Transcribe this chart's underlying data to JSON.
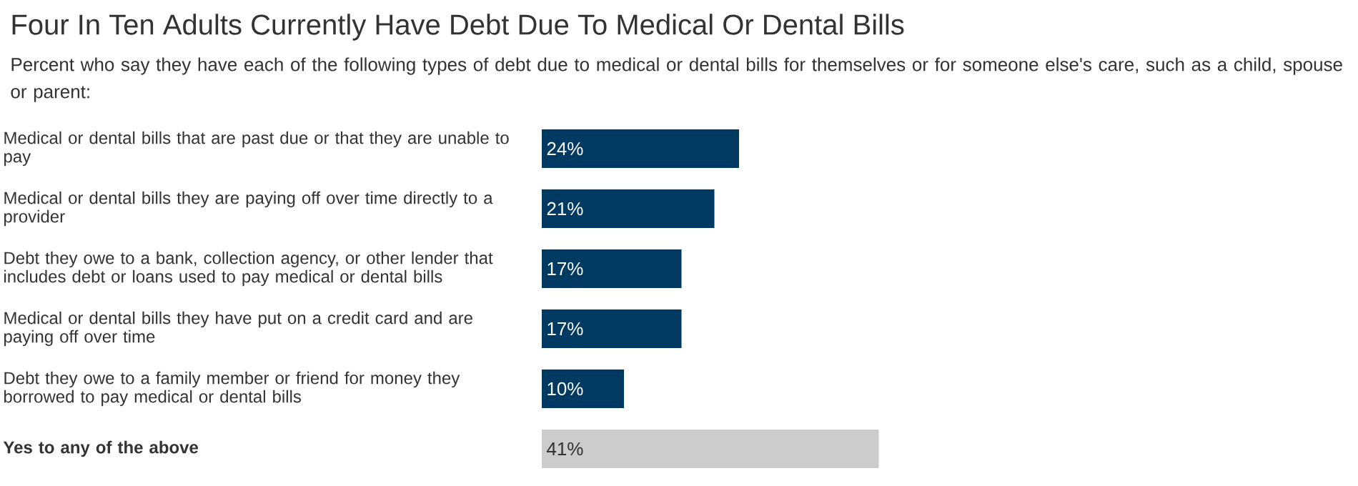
{
  "chart_data": {
    "type": "bar",
    "orientation": "horizontal",
    "title": "Four In Ten Adults Currently Have Debt Due To Medical Or Dental Bills",
    "subtitle": "Percent who say they have each of the following types of debt due to medical or dental bills for themselves or for someone else's care, such as a child, spouse or parent:",
    "categories": [
      "Medical or dental bills that are past due or that they are unable to pay",
      "Medical or dental bills they are paying off over time directly to a provider",
      "Debt they owe to a bank, collection agency, or other lender that includes debt or loans used to pay medical or dental bills",
      "Medical or dental bills they have put on a credit card and are paying off over time",
      "Debt they owe to a family member or friend for money they borrowed to pay medical or dental bills",
      "**Yes to any of the above**"
    ],
    "values": [
      24,
      21,
      17,
      17,
      10,
      41
    ],
    "colors": [
      "#003a63",
      "#003a63",
      "#003a63",
      "#003a63",
      "#003a63",
      "#cccccc"
    ],
    "value_labels": [
      "24%",
      "21%",
      "17%",
      "17%",
      "10%",
      "41%"
    ]
  }
}
